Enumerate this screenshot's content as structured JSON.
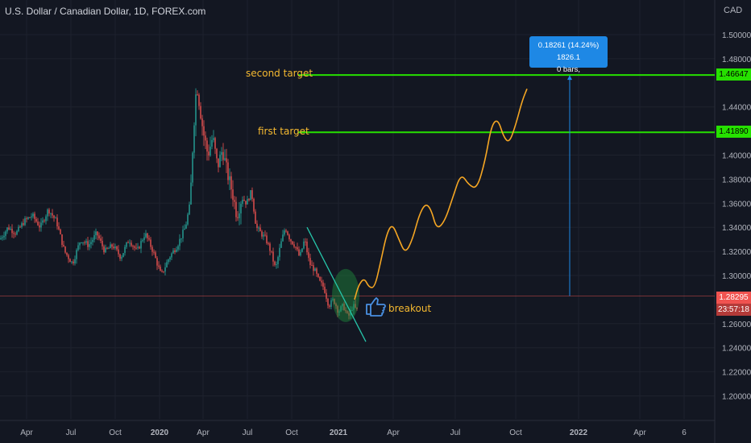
{
  "header": {
    "title": "U.S. Dollar / Canadian Dollar, 1D, FOREX.com",
    "currency": "CAD"
  },
  "annotations": {
    "second_target": "second target",
    "first_target": "first target",
    "breakout": "breakout",
    "measure_line1": "0.18261 (14.24%) 1826.1",
    "measure_line2": "0 bars,"
  },
  "price_badges": {
    "second_target": "1.46647",
    "first_target": "1.41890",
    "current_price": "1.28295",
    "countdown": "23:57:18"
  },
  "colors": {
    "background": "#131722",
    "target_line": "#26e000",
    "projection": "#f5a623",
    "trendline": "#26c6aa",
    "up_candle": "#26a69a",
    "down_candle": "#ef5350",
    "measure_box": "#1e88e5",
    "current_price_line": "#ef5350"
  },
  "chart_data": {
    "type": "candlestick",
    "title": "U.S. Dollar / Canadian Dollar, 1D, FOREX.com",
    "y_axis": {
      "ticks": [
        "1.50000",
        "1.48000",
        "1.46647",
        "1.44000",
        "1.41890",
        "1.40000",
        "1.38000",
        "1.36000",
        "1.34000",
        "1.32000",
        "1.30000",
        "1.28295",
        "1.26000",
        "1.24000",
        "1.22000",
        "1.20000"
      ],
      "range": [
        1.18,
        1.51
      ]
    },
    "x_axis": {
      "ticks": [
        "Apr",
        "Jul",
        "Oct",
        "2020",
        "Apr",
        "Jul",
        "Oct",
        "2021",
        "Apr",
        "Jul",
        "Oct",
        "2022",
        "Apr",
        "6"
      ]
    },
    "levels": [
      {
        "name": "second target",
        "value": 1.46647
      },
      {
        "name": "first target",
        "value": 1.4189
      },
      {
        "name": "current price",
        "value": 1.28295
      }
    ],
    "measure": {
      "change": 0.18261,
      "percent": 14.24,
      "pips": 1826.1,
      "bars": 0
    },
    "price_path": [
      [
        0,
        1.33
      ],
      [
        10,
        1.34
      ],
      [
        20,
        1.335
      ],
      [
        30,
        1.345
      ],
      [
        40,
        1.35
      ],
      [
        50,
        1.34
      ],
      [
        60,
        1.355
      ],
      [
        70,
        1.345
      ],
      [
        80,
        1.32
      ],
      [
        90,
        1.31
      ],
      [
        100,
        1.33
      ],
      [
        110,
        1.325
      ],
      [
        120,
        1.335
      ],
      [
        130,
        1.32
      ],
      [
        140,
        1.325
      ],
      [
        150,
        1.315
      ],
      [
        160,
        1.33
      ],
      [
        170,
        1.32
      ],
      [
        180,
        1.335
      ],
      [
        190,
        1.32
      ],
      [
        200,
        1.3
      ],
      [
        210,
        1.315
      ],
      [
        220,
        1.325
      ],
      [
        230,
        1.34
      ],
      [
        236,
        1.36
      ],
      [
        240,
        1.42
      ],
      [
        244,
        1.46
      ],
      [
        248,
        1.44
      ],
      [
        252,
        1.42
      ],
      [
        258,
        1.4
      ],
      [
        264,
        1.415
      ],
      [
        270,
        1.39
      ],
      [
        276,
        1.405
      ],
      [
        282,
        1.385
      ],
      [
        288,
        1.37
      ],
      [
        294,
        1.35
      ],
      [
        300,
        1.365
      ],
      [
        306,
        1.36
      ],
      [
        312,
        1.37
      ],
      [
        318,
        1.34
      ],
      [
        324,
        1.335
      ],
      [
        330,
        1.33
      ],
      [
        336,
        1.32
      ],
      [
        342,
        1.305
      ],
      [
        348,
        1.325
      ],
      [
        354,
        1.34
      ],
      [
        360,
        1.33
      ],
      [
        366,
        1.325
      ],
      [
        372,
        1.315
      ],
      [
        378,
        1.33
      ],
      [
        384,
        1.31
      ],
      [
        390,
        1.305
      ],
      [
        396,
        1.295
      ],
      [
        402,
        1.29
      ],
      [
        408,
        1.275
      ],
      [
        414,
        1.28
      ],
      [
        420,
        1.27
      ],
      [
        426,
        1.275
      ],
      [
        432,
        1.265
      ],
      [
        438,
        1.275
      ],
      [
        444,
        1.27
      ]
    ],
    "projection_path": [
      [
        440,
        1.28
      ],
      [
        445,
        1.292
      ],
      [
        452,
        1.298
      ],
      [
        458,
        1.29
      ],
      [
        465,
        1.29
      ],
      [
        472,
        1.31
      ],
      [
        480,
        1.335
      ],
      [
        487,
        1.343
      ],
      [
        495,
        1.33
      ],
      [
        503,
        1.318
      ],
      [
        512,
        1.33
      ],
      [
        520,
        1.35
      ],
      [
        528,
        1.36
      ],
      [
        535,
        1.355
      ],
      [
        542,
        1.338
      ],
      [
        552,
        1.345
      ],
      [
        562,
        1.365
      ],
      [
        572,
        1.385
      ],
      [
        582,
        1.375
      ],
      [
        592,
        1.372
      ],
      [
        602,
        1.395
      ],
      [
        610,
        1.425
      ],
      [
        618,
        1.43
      ],
      [
        625,
        1.415
      ],
      [
        632,
        1.41
      ],
      [
        640,
        1.425
      ],
      [
        648,
        1.445
      ],
      [
        654,
        1.455
      ]
    ],
    "trendline": {
      "from": [
        381,
        1.34
      ],
      "to": [
        454,
        1.245
      ]
    },
    "breakout_marker": {
      "at": [
        431,
        1.28
      ]
    }
  }
}
